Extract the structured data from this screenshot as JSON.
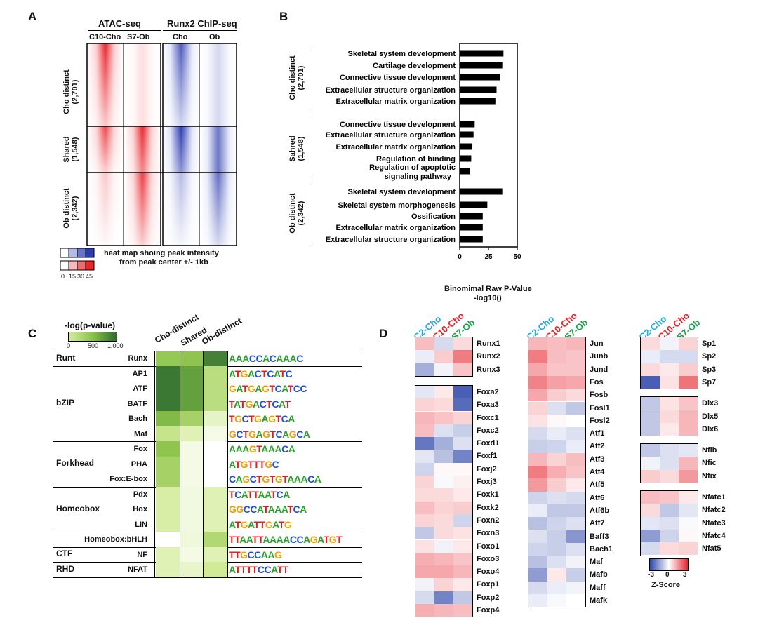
{
  "panels": {
    "a": "A",
    "b": "B",
    "c": "C",
    "d": "D"
  },
  "panel_a": {
    "group_headers": [
      "ATAC-seq",
      "Runx2 ChIP-seq"
    ],
    "columns": [
      "C10-Cho",
      "S7-Ob",
      "Cho",
      "Ob"
    ],
    "row_groups": [
      {
        "line1": "Cho distinct",
        "line2": "(2,701)"
      },
      {
        "line1": "Shared",
        "line2": "(1,548)"
      },
      {
        "line1": "Ob distinct",
        "line2": "(2,342)"
      }
    ],
    "legend_text_1": "heat map shoing peak intensity",
    "legend_text_2": "from peak center +/- 1kb",
    "legend_ticks": [
      "0",
      "15",
      "30",
      "45"
    ],
    "colors": {
      "red": "#e8262c",
      "blue": "#2b3bb0"
    }
  },
  "panel_b": {
    "groups": [
      {
        "line1": "Cho distinct",
        "line2": "(2,701)"
      },
      {
        "line1": "Sahred",
        "line2": "(1,548)"
      },
      {
        "line1": "Ob distinct",
        "line2": "(2,342)"
      }
    ],
    "xlabel_1": "Binomimal Raw P-Value",
    "xlabel_2": "-log10()"
  },
  "chart_data": {
    "type": "bar",
    "orientation": "horizontal",
    "categories": [
      "Skeletal system development",
      "Cartilage development",
      "Connective tissue development",
      "Extracellular structure organization",
      "Extracellular matrix organization",
      "Connective tissue development",
      "Extracellular structure organization",
      "Extracellular matrix organization",
      "Regulation of binding",
      "Regulation of apoptotic signaling pathway",
      "Skeletal system development",
      "Skeletal system morphogenesis",
      "Ossification",
      "Extracellular matrix organization",
      "Extracellular structure organization"
    ],
    "values": [
      38,
      37,
      35,
      32,
      31,
      13,
      12,
      11,
      10,
      9,
      37,
      24,
      20,
      20,
      20
    ],
    "xlim": [
      0,
      50
    ],
    "xticks": [
      "0",
      "25",
      "50"
    ]
  },
  "panel_c": {
    "legend_title": "-log(p-value)",
    "legend_ticks": [
      "0",
      "500",
      "1,000"
    ],
    "columns": [
      "Cho-distinct",
      "Shared",
      "Ob-distinct"
    ],
    "families": [
      {
        "name": "Runt",
        "rows": [
          {
            "label": "Runx",
            "vals": [
              0.62,
              0.65,
              0.92
            ],
            "motif": "AAACCACAAAC"
          }
        ]
      },
      {
        "name": "bZIP",
        "rows": [
          {
            "label": "AP1",
            "vals": [
              0.95,
              0.8,
              0.45
            ],
            "motif": "ATGACTCATC"
          },
          {
            "label": "ATF",
            "vals": [
              0.95,
              0.8,
              0.45
            ],
            "motif": "GATGAGTCATCC"
          },
          {
            "label": "BATF",
            "vals": [
              0.95,
              0.8,
              0.45
            ],
            "motif": "TATGACTCAT"
          },
          {
            "label": "Bach",
            "vals": [
              0.7,
              0.55,
              0.2
            ],
            "motif": "TGCTGAGTCA"
          },
          {
            "label": "Maf",
            "vals": [
              0.4,
              0.25,
              0.08
            ],
            "motif": "GCTGAGTCAGCA"
          }
        ]
      },
      {
        "name": "Forkhead",
        "rows": [
          {
            "label": "Fox",
            "vals": [
              0.65,
              0.08,
              0.0
            ],
            "motif": "AAAGTAAACA"
          },
          {
            "label": "PHA",
            "vals": [
              0.55,
              0.08,
              0.0
            ],
            "motif": "ATGTTTGC"
          },
          {
            "label": "Fox:E-box",
            "vals": [
              0.55,
              0.08,
              0.0
            ],
            "motif": "CAGCTGTGTAAACA"
          }
        ]
      },
      {
        "name": "Homeobox",
        "rows": [
          {
            "label": "Pdx",
            "vals": [
              0.3,
              0.1,
              0.25
            ],
            "motif": "TCATTAATCA"
          },
          {
            "label": "Hox",
            "vals": [
              0.3,
              0.1,
              0.25
            ],
            "motif": "GGCCATAAATCA"
          },
          {
            "label": "LIN",
            "vals": [
              0.3,
              0.1,
              0.25
            ],
            "motif": "ATGATTGATG"
          }
        ]
      },
      {
        "name": "",
        "rows": [
          {
            "label": "Homeobox:bHLH",
            "vals": [
              0.0,
              0.12,
              0.5
            ],
            "motif": "TTAATTAAAACCAGATGT"
          }
        ]
      },
      {
        "name": "CTF",
        "rows": [
          {
            "label": "NF",
            "vals": [
              0.25,
              0.08,
              0.25
            ],
            "motif": "TTGCCAAG"
          }
        ]
      },
      {
        "name": "RHD",
        "rows": [
          {
            "label": "NFAT",
            "vals": [
              0.25,
              0.18,
              0.35
            ],
            "motif": "ATTTTCCATT"
          }
        ]
      }
    ]
  },
  "panel_d": {
    "samples": [
      "C2-Cho",
      "C10-Cho",
      "S7-Ob"
    ],
    "sample_colors": [
      "#29a8e0",
      "#e8262c",
      "#17a34a"
    ],
    "scale_ticks": [
      "-3",
      "0",
      "3"
    ],
    "scale_label": "Z-Score",
    "col1": [
      {
        "genes": [
          "Runx1",
          "Runx2",
          "Runx3"
        ],
        "z": [
          [
            0.9,
            -0.6,
            0.5
          ],
          [
            -0.3,
            0.7,
            1.8
          ],
          [
            -1.3,
            -0.2,
            0.8
          ]
        ]
      },
      {
        "genes": [
          "Foxa2",
          "Foxa3",
          "Foxc1",
          "Foxc2",
          "Foxd1",
          "Foxf1",
          "Foxj2",
          "Foxj3",
          "Foxk1",
          "Foxk2",
          "Foxn2",
          "Foxn3",
          "Foxo1",
          "Foxo3",
          "Foxo4",
          "Foxp1",
          "Foxp2",
          "Foxp4"
        ],
        "z": [
          [
            -0.4,
            0.3,
            -2.6
          ],
          [
            0.6,
            0.5,
            -2.4
          ],
          [
            1.0,
            0.8,
            0.6
          ],
          [
            0.9,
            -0.5,
            -0.8
          ],
          [
            -2.2,
            -1.3,
            -0.5
          ],
          [
            -0.4,
            -1.0,
            -2.0
          ],
          [
            -0.7,
            0.1,
            0.1
          ],
          [
            0.6,
            -0.1,
            0.2
          ],
          [
            0.5,
            0.5,
            0.3
          ],
          [
            0.9,
            0.6,
            0.7
          ],
          [
            0.6,
            0.5,
            -0.7
          ],
          [
            -0.9,
            0.5,
            0.4
          ],
          [
            0.4,
            -0.2,
            0.3
          ],
          [
            1.1,
            1.0,
            0.8
          ],
          [
            1.2,
            1.2,
            1.0
          ],
          [
            -0.2,
            0.6,
            0.3
          ],
          [
            -0.6,
            -2.0,
            -0.9
          ],
          [
            1.1,
            1.0,
            0.9
          ]
        ]
      }
    ],
    "col2": [
      {
        "genes": [
          "Jun",
          "Junb",
          "Jund",
          "Fos",
          "Fosb",
          "Fosl1",
          "Fosl2",
          "Atf1",
          "Atf2",
          "Atf3",
          "Atf4",
          "Atf5",
          "Atf6",
          "Atf6b",
          "Atf7",
          "Baff3",
          "Bach1",
          "Maf",
          "Mafb",
          "Maff",
          "Mafk"
        ],
        "z": [
          [
            1.0,
            0.9,
            1.0
          ],
          [
            1.8,
            0.9,
            0.8
          ],
          [
            1.2,
            0.8,
            0.8
          ],
          [
            1.7,
            1.3,
            1.2
          ],
          [
            1.2,
            0.7,
            0.5
          ],
          [
            0.6,
            -0.5,
            -0.9
          ],
          [
            0.4,
            0.1,
            0.0
          ],
          [
            -0.6,
            -0.3,
            -0.5
          ],
          [
            -0.8,
            -0.7,
            -0.3
          ],
          [
            1.0,
            0.6,
            0.9
          ],
          [
            1.8,
            1.1,
            0.8
          ],
          [
            1.4,
            0.7,
            0.3
          ],
          [
            -0.7,
            -0.5,
            -0.6
          ],
          [
            -0.3,
            -0.9,
            -0.9
          ],
          [
            -1.0,
            -0.7,
            -0.5
          ],
          [
            -0.5,
            -0.8,
            -1.7
          ],
          [
            -0.7,
            -0.8,
            -0.5
          ],
          [
            -1.0,
            -0.5,
            -0.2
          ],
          [
            -1.6,
            0.3,
            -0.8
          ],
          [
            -0.6,
            -0.3,
            -0.2
          ],
          [
            -0.3,
            -0.1,
            0.0
          ]
        ]
      }
    ],
    "col3": [
      {
        "genes": [
          "Sp1",
          "Sp2",
          "Sp3",
          "Sp7"
        ],
        "z": [
          [
            0.5,
            -0.2,
            0.6
          ],
          [
            -0.3,
            -0.6,
            -0.6
          ],
          [
            0.5,
            0.3,
            0.7
          ],
          [
            -2.6,
            0.4,
            1.9
          ]
        ]
      },
      {
        "genes": [
          "Dlx3",
          "Dlx5",
          "Dlx6"
        ],
        "z": [
          [
            -0.9,
            0.4,
            0.8
          ],
          [
            -0.9,
            0.5,
            1.0
          ],
          [
            -0.9,
            0.3,
            1.0
          ]
        ]
      },
      {
        "genes": [
          "Nfib",
          "Nfic",
          "Nfix"
        ],
        "z": [
          [
            -0.9,
            -0.5,
            -0.4
          ],
          [
            -0.2,
            -0.5,
            1.0
          ],
          [
            0.7,
            0.5,
            1.4
          ]
        ]
      },
      {
        "genes": [
          "Nfatc1",
          "Nfatc2",
          "Nfatc3",
          "Nfatc4",
          "Nfat5"
        ],
        "z": [
          [
            0.9,
            0.8,
            0.3
          ],
          [
            0.5,
            -0.9,
            -0.4
          ],
          [
            -0.4,
            -0.5,
            -0.1
          ],
          [
            -1.6,
            -0.7,
            0.1
          ],
          [
            -0.6,
            0.5,
            0.6
          ]
        ]
      }
    ]
  }
}
